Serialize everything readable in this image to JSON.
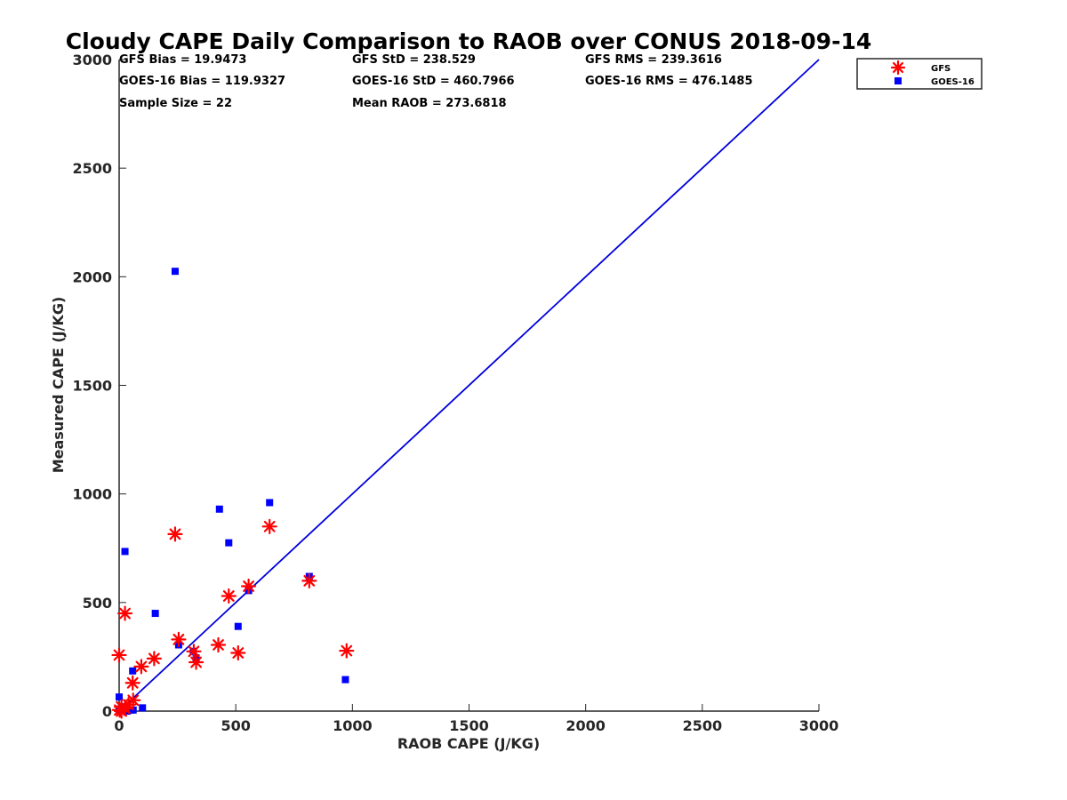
{
  "chart_data": {
    "type": "scatter",
    "title": "Cloudy CAPE Daily Comparison to RAOB over CONUS 2018-09-14",
    "xlabel": "RAOB CAPE (J/KG)",
    "ylabel": "Measured CAPE (J/KG)",
    "xlim": [
      0,
      3000
    ],
    "ylim": [
      0,
      3000
    ],
    "xticks": [
      0,
      500,
      1000,
      1500,
      2000,
      2500,
      3000
    ],
    "yticks": [
      0,
      500,
      1000,
      1500,
      2000,
      2500,
      3000
    ],
    "grid": false,
    "legend_position": "top-right outside",
    "reference_line": {
      "x": [
        0,
        3000
      ],
      "y": [
        0,
        3000
      ],
      "color": "#0000dd"
    },
    "stats": [
      "GFS Bias = 19.9473",
      "GFS StD = 238.529",
      "GFS RMS = 239.3616",
      "GOES-16 Bias = 119.9327",
      "GOES-16 StD = 460.7966",
      "GOES-16 RMS = 476.1485",
      "Sample Size = 22",
      "Mean RAOB = 273.6818"
    ],
    "series": [
      {
        "name": "GFS",
        "marker": "asterisk",
        "color": "#ff0000",
        "x": [
          0,
          2,
          10,
          25,
          40,
          60,
          58,
          95,
          150,
          240,
          255,
          320,
          330,
          425,
          470,
          510,
          555,
          645,
          815,
          975,
          25,
          10
        ],
        "y": [
          258,
          5,
          20,
          12,
          30,
          50,
          130,
          205,
          242,
          815,
          330,
          275,
          225,
          305,
          530,
          268,
          575,
          850,
          600,
          278,
          450,
          0
        ]
      },
      {
        "name": "GOES-16",
        "marker": "square",
        "color": "#0000ff",
        "x": [
          0,
          0,
          20,
          25,
          35,
          58,
          60,
          100,
          155,
          240,
          255,
          318,
          330,
          430,
          470,
          510,
          555,
          645,
          815,
          970,
          10,
          50
        ],
        "y": [
          65,
          5,
          10,
          735,
          0,
          185,
          5,
          15,
          450,
          2025,
          305,
          275,
          245,
          930,
          775,
          390,
          555,
          960,
          620,
          145,
          20,
          5
        ]
      }
    ]
  }
}
